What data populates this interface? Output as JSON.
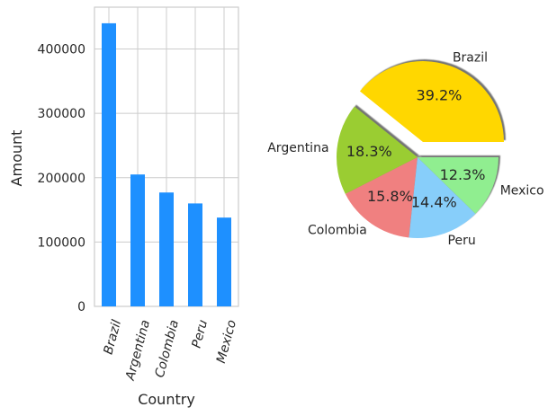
{
  "chart_data": [
    {
      "type": "bar",
      "categories": [
        "Brazil",
        "Argentina",
        "Colombia",
        "Peru",
        "Mexico"
      ],
      "values": [
        440000,
        205000,
        177000,
        160000,
        138000
      ],
      "xlabel": "Country",
      "ylabel": "Amount",
      "ylim": [
        0,
        465000
      ],
      "yticks": [
        0,
        100000,
        200000,
        300000,
        400000
      ],
      "ytick_labels": [
        "0",
        "100000",
        "200000",
        "300000",
        "400000"
      ],
      "color": "#1e90ff",
      "grid": true,
      "xtick_rotation_deg": 75
    },
    {
      "type": "pie",
      "labels": [
        "Brazil",
        "Argentina",
        "Colombia",
        "Peru",
        "Mexico"
      ],
      "values": [
        39.2,
        18.3,
        15.8,
        14.4,
        12.3
      ],
      "value_labels": [
        "39.2%",
        "18.3%",
        "15.8%",
        "14.4%",
        "12.3%"
      ],
      "colors": [
        "#ffd700",
        "#9acd32",
        "#f08080",
        "#87cefa",
        "#90ee90"
      ],
      "explode": [
        0.2,
        0,
        0,
        0,
        0
      ],
      "shadow": true,
      "start_angle_deg": 0
    }
  ]
}
